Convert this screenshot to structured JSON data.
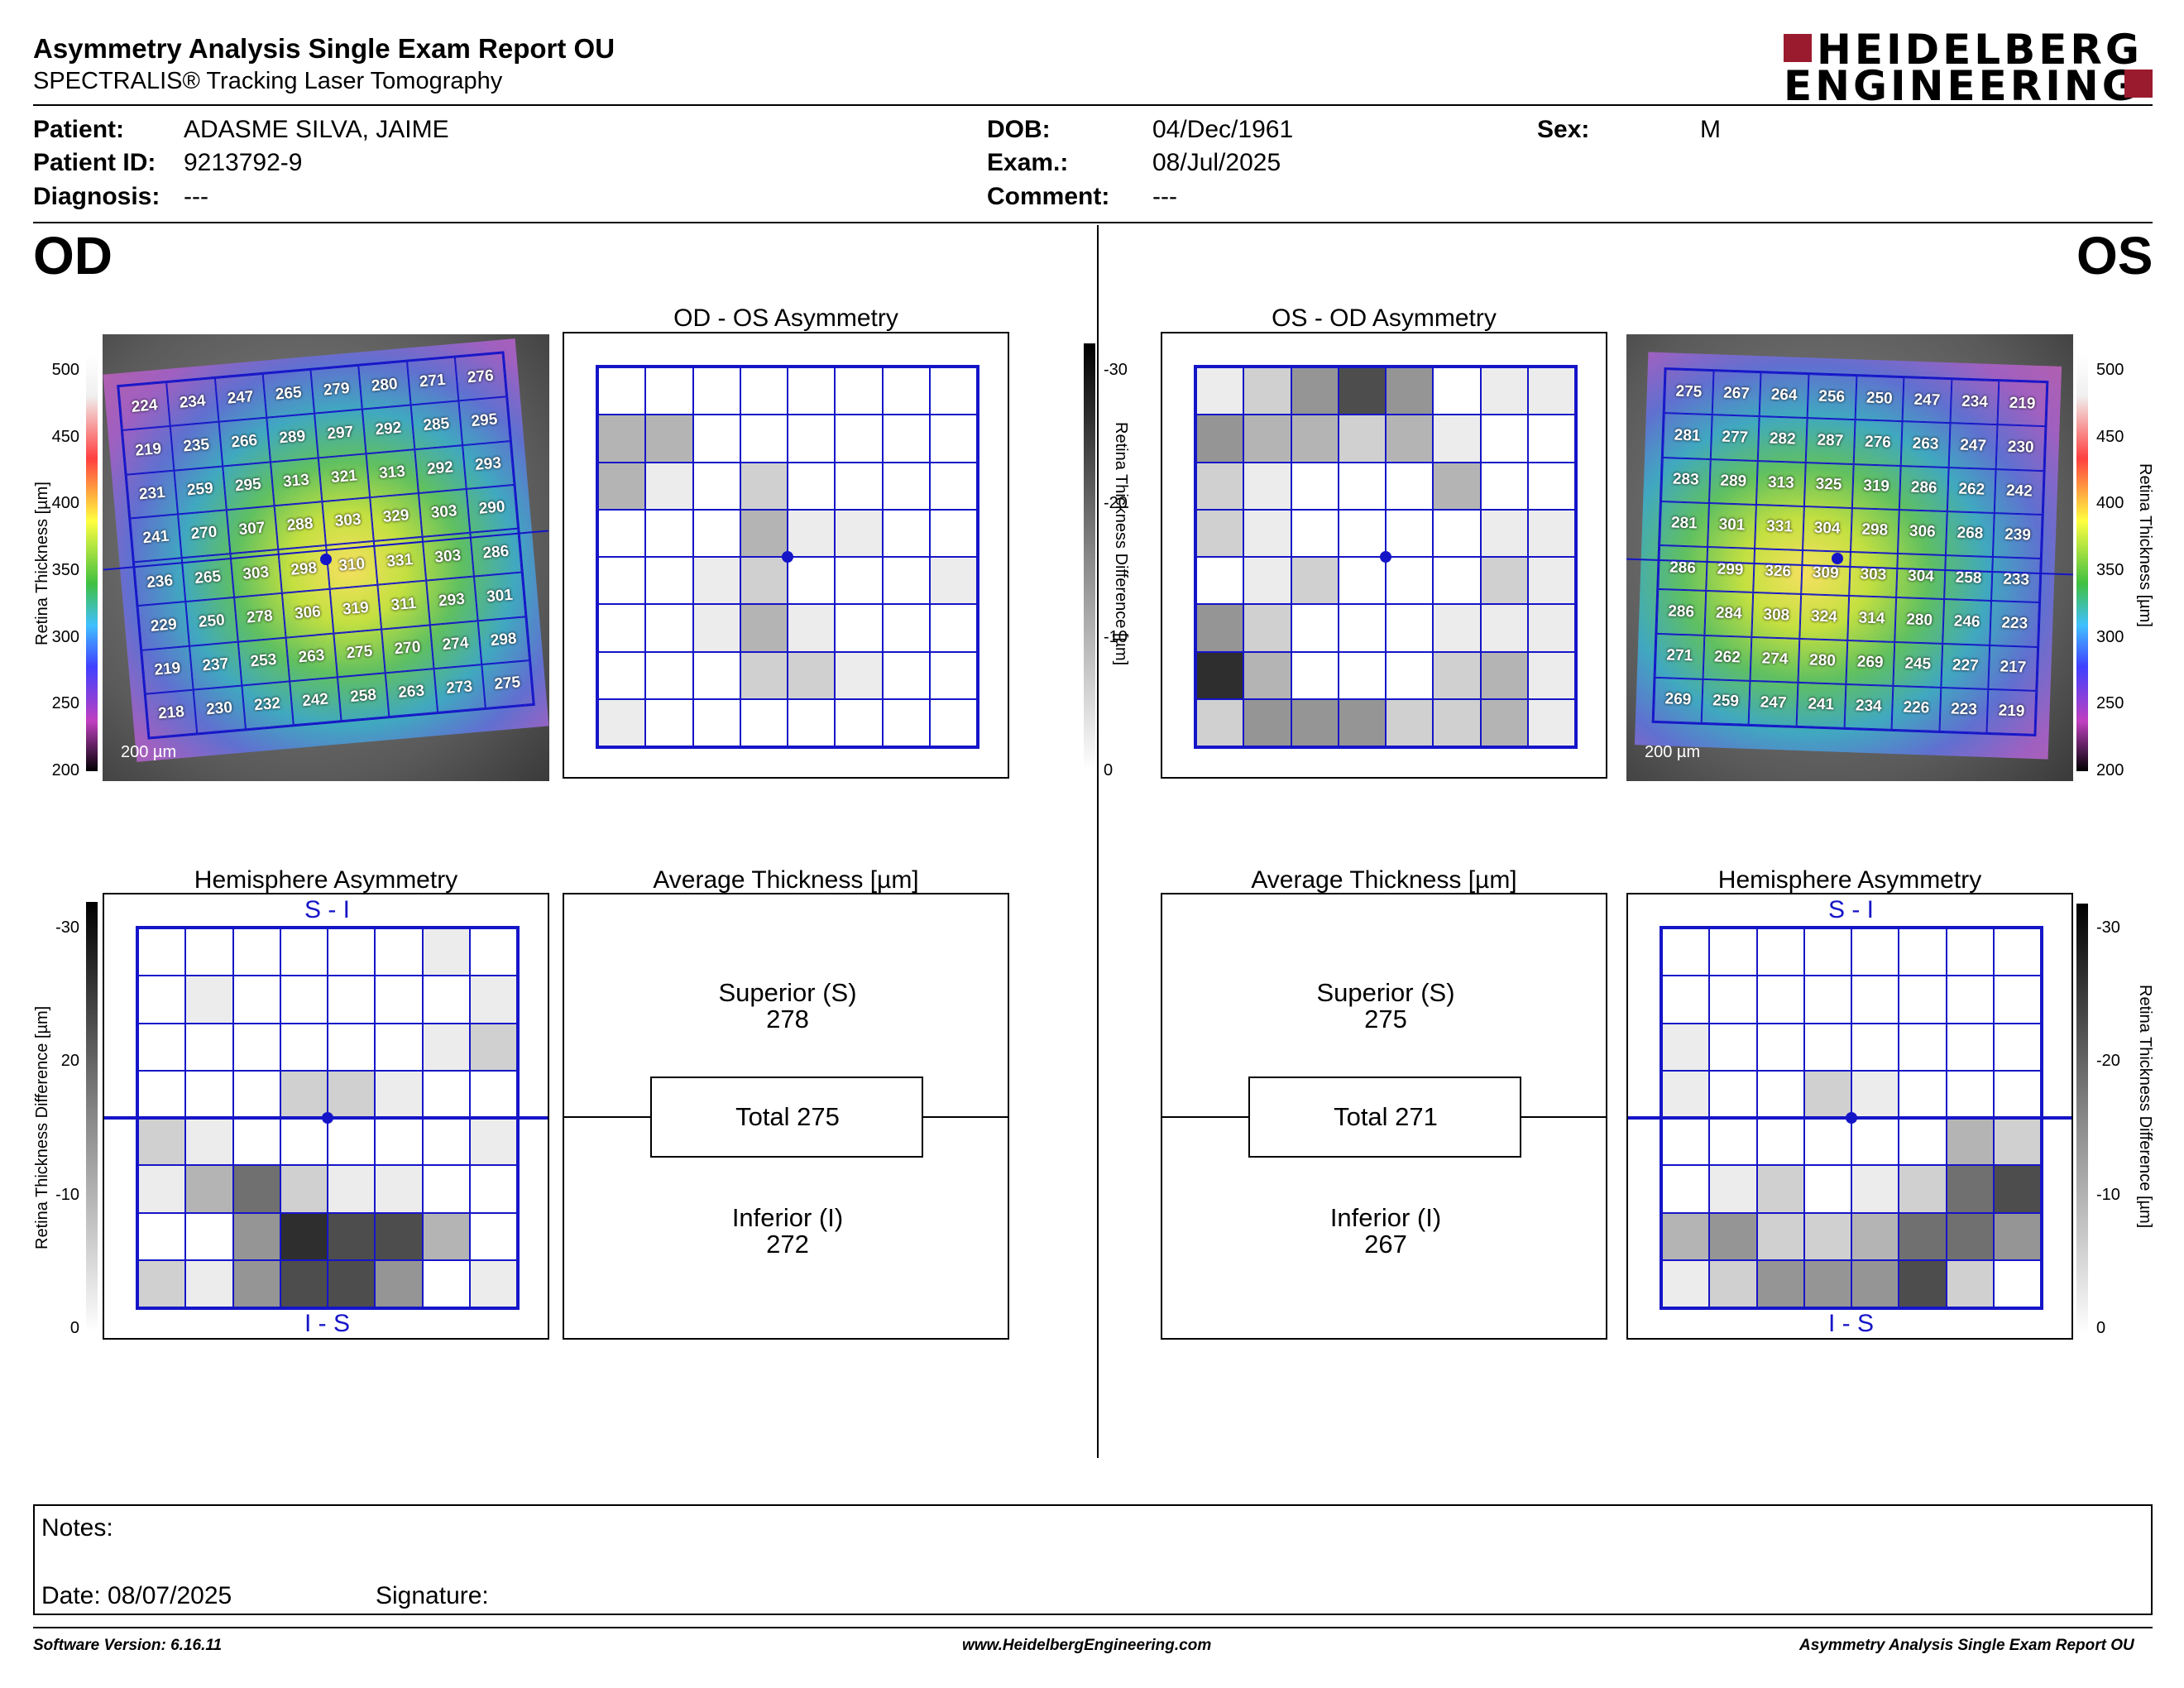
{
  "header": {
    "title": "Asymmetry Analysis Single Exam Report OU",
    "subtitle": "SPECTRALIS® Tracking Laser Tomography",
    "logo_line1": "HEIDELBERG",
    "logo_line2": "ENGINEERING"
  },
  "patient": {
    "patient_label": "Patient:",
    "patient_value": "ADASME SILVA, JAIME",
    "id_label": "Patient ID:",
    "id_value": "9213792-9",
    "diagnosis_label": "Diagnosis:",
    "diagnosis_value": "---",
    "dob_label": "DOB:",
    "dob_value": "04/Dec/1961",
    "exam_label": "Exam.:",
    "exam_value": "08/Jul/2025",
    "comment_label": "Comment:",
    "comment_value": "---",
    "sex_label": "Sex:",
    "sex_value": "M"
  },
  "eyes": {
    "left": "OD",
    "right": "OS"
  },
  "panels": {
    "od_os_title": "OD - OS Asymmetry",
    "os_od_title": "OS - OD Asymmetry",
    "hemi_title": "Hemisphere Asymmetry",
    "avg_title": "Average Thickness [µm]",
    "s_i": "S - I",
    "i_s": "I - S",
    "scale_label": "200 µm"
  },
  "axes": {
    "thickness_label": "Retina  Thickness [µm]",
    "diff_label": "Retina Thickness Difference [µm]",
    "thickness_ticks": [
      "500",
      "450",
      "400",
      "350",
      "300",
      "250",
      "200"
    ],
    "diff_ticks_upper": [
      "-30",
      "-20",
      "-10",
      "0"
    ],
    "diff_ticks_lower": [
      "-30",
      "20",
      "-10",
      "0"
    ],
    "diff_ticks_lower_right": [
      "-30",
      "-20",
      "-10",
      "0"
    ]
  },
  "od_thickness": [
    [
      "224",
      "234",
      "247",
      "265",
      "279",
      "280",
      "271",
      "276"
    ],
    [
      "219",
      "235",
      "266",
      "289",
      "297",
      "292",
      "285",
      "295"
    ],
    [
      "231",
      "259",
      "295",
      "313",
      "321",
      "313",
      "292",
      "293"
    ],
    [
      "241",
      "270",
      "307",
      "288",
      "303",
      "329",
      "303",
      "290"
    ],
    [
      "236",
      "265",
      "303",
      "298",
      "310",
      "331",
      "303",
      "286"
    ],
    [
      "229",
      "250",
      "278",
      "306",
      "319",
      "311",
      "293",
      "301"
    ],
    [
      "219",
      "237",
      "253",
      "263",
      "275",
      "270",
      "274",
      "298"
    ],
    [
      "218",
      "230",
      "232",
      "242",
      "258",
      "263",
      "273",
      "275"
    ]
  ],
  "os_thickness": [
    [
      "275",
      "267",
      "264",
      "256",
      "250",
      "247",
      "234",
      "219"
    ],
    [
      "281",
      "277",
      "282",
      "287",
      "276",
      "263",
      "247",
      "230"
    ],
    [
      "283",
      "289",
      "313",
      "325",
      "319",
      "286",
      "262",
      "242"
    ],
    [
      "281",
      "301",
      "331",
      "304",
      "298",
      "306",
      "268",
      "239"
    ],
    [
      "286",
      "299",
      "326",
      "309",
      "303",
      "304",
      "258",
      "233"
    ],
    [
      "286",
      "284",
      "308",
      "324",
      "314",
      "280",
      "246",
      "223"
    ],
    [
      "271",
      "262",
      "274",
      "280",
      "269",
      "245",
      "227",
      "217"
    ],
    [
      "269",
      "259",
      "247",
      "241",
      "234",
      "226",
      "223",
      "219"
    ]
  ],
  "od_os_asym_levels": [
    [
      0,
      0,
      0,
      0,
      0,
      0,
      0,
      0
    ],
    [
      3,
      3,
      0,
      0,
      0,
      0,
      0,
      0
    ],
    [
      3,
      1,
      0,
      2,
      0,
      0,
      0,
      0
    ],
    [
      0,
      0,
      0,
      3,
      1,
      1,
      0,
      0
    ],
    [
      0,
      0,
      1,
      2,
      0,
      0,
      0,
      1
    ],
    [
      0,
      0,
      1,
      3,
      1,
      0,
      0,
      0
    ],
    [
      0,
      0,
      0,
      2,
      2,
      1,
      0,
      0
    ],
    [
      1,
      0,
      0,
      0,
      0,
      0,
      0,
      0
    ]
  ],
  "os_od_asym_levels": [
    [
      1,
      2,
      4,
      6,
      4,
      0,
      1,
      1
    ],
    [
      4,
      3,
      3,
      2,
      3,
      1,
      0,
      0
    ],
    [
      2,
      1,
      0,
      0,
      0,
      3,
      0,
      0
    ],
    [
      2,
      1,
      0,
      0,
      0,
      0,
      1,
      1
    ],
    [
      0,
      1,
      2,
      0,
      0,
      0,
      2,
      1
    ],
    [
      4,
      2,
      0,
      0,
      0,
      1,
      1,
      1
    ],
    [
      7,
      3,
      0,
      0,
      0,
      2,
      3,
      1
    ],
    [
      2,
      4,
      4,
      4,
      2,
      2,
      3,
      1
    ]
  ],
  "od_hemi_levels": [
    [
      0,
      0,
      0,
      0,
      0,
      0,
      1,
      0
    ],
    [
      0,
      1,
      0,
      0,
      0,
      0,
      0,
      1
    ],
    [
      0,
      0,
      0,
      0,
      0,
      0,
      1,
      2
    ],
    [
      0,
      0,
      0,
      2,
      2,
      1,
      0,
      0
    ],
    [
      2,
      1,
      0,
      0,
      0,
      0,
      0,
      1
    ],
    [
      1,
      3,
      5,
      2,
      1,
      1,
      0,
      0
    ],
    [
      0,
      0,
      4,
      7,
      6,
      6,
      3,
      0
    ],
    [
      2,
      1,
      4,
      6,
      6,
      4,
      0,
      1
    ]
  ],
  "os_hemi_levels": [
    [
      0,
      0,
      0,
      0,
      0,
      0,
      0,
      0
    ],
    [
      0,
      0,
      0,
      0,
      0,
      0,
      0,
      0
    ],
    [
      1,
      0,
      0,
      0,
      0,
      0,
      0,
      0
    ],
    [
      1,
      0,
      0,
      2,
      1,
      0,
      0,
      0
    ],
    [
      0,
      0,
      0,
      0,
      0,
      0,
      3,
      2
    ],
    [
      0,
      1,
      2,
      0,
      1,
      2,
      5,
      6
    ],
    [
      3,
      4,
      2,
      2,
      3,
      5,
      5,
      4
    ],
    [
      1,
      2,
      4,
      4,
      4,
      6,
      2,
      0
    ]
  ],
  "od_avg": {
    "superior_label": "Superior (S)",
    "superior": "278",
    "total": "Total 275",
    "inferior_label": "Inferior (I)",
    "inferior": "272"
  },
  "os_avg": {
    "superior_label": "Superior (S)",
    "superior": "275",
    "total": "Total 271",
    "inferior_label": "Inferior (I)",
    "inferior": "267"
  },
  "notes": {
    "notes_label": "Notes:",
    "date_label": "Date: 08/07/2025",
    "signature_label": "Signature:"
  },
  "footer": {
    "software": "Software Version: 6.16.11",
    "website": "www.HeidelbergEngineering.com",
    "report": "Asymmetry Analysis Single Exam Report OU"
  },
  "colors": {
    "grid_blue": "#1515c8",
    "logo_red": "#9b1b2e"
  }
}
